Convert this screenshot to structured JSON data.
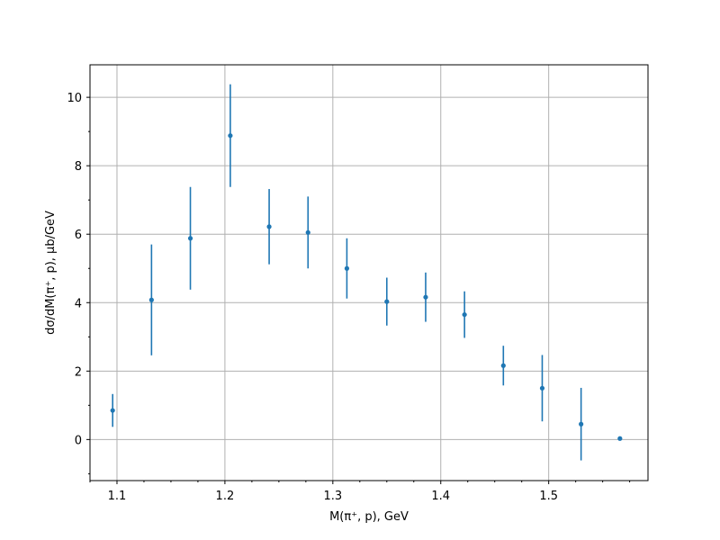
{
  "chart_data": {
    "type": "scatter",
    "style": "errorbar",
    "xlabel": "M(π⁺, p), GeV",
    "ylabel": "dσ/dM(π⁺, p), μb/GeV",
    "xlim": [
      1.075,
      1.592
    ],
    "ylim": [
      -1.2,
      10.95
    ],
    "xticks": [
      1.1,
      1.2,
      1.3,
      1.4,
      1.5
    ],
    "xtick_labels": [
      "1.1",
      "1.2",
      "1.3",
      "1.4",
      "1.5"
    ],
    "yticks": [
      0,
      2,
      4,
      6,
      8,
      10
    ],
    "ytick_labels": [
      "0",
      "2",
      "4",
      "6",
      "8",
      "10"
    ],
    "minor_ticks": true,
    "grid": true,
    "color": "#1f77b4",
    "points": [
      {
        "x": 1.096,
        "y": 0.85,
        "err": 0.48
      },
      {
        "x": 1.132,
        "y": 4.08,
        "err": 1.62
      },
      {
        "x": 1.168,
        "y": 5.88,
        "err": 1.5
      },
      {
        "x": 1.205,
        "y": 8.88,
        "err": 1.5
      },
      {
        "x": 1.241,
        "y": 6.22,
        "err": 1.1
      },
      {
        "x": 1.277,
        "y": 6.05,
        "err": 1.05
      },
      {
        "x": 1.313,
        "y": 5.0,
        "err": 0.88
      },
      {
        "x": 1.35,
        "y": 4.03,
        "err": 0.7
      },
      {
        "x": 1.386,
        "y": 4.16,
        "err": 0.72
      },
      {
        "x": 1.422,
        "y": 3.65,
        "err": 0.68
      },
      {
        "x": 1.458,
        "y": 2.16,
        "err": 0.58
      },
      {
        "x": 1.494,
        "y": 1.5,
        "err": 0.97
      },
      {
        "x": 1.53,
        "y": 0.45,
        "err": 1.06
      },
      {
        "x": 1.566,
        "y": 0.03,
        "err": 0.0
      }
    ]
  }
}
